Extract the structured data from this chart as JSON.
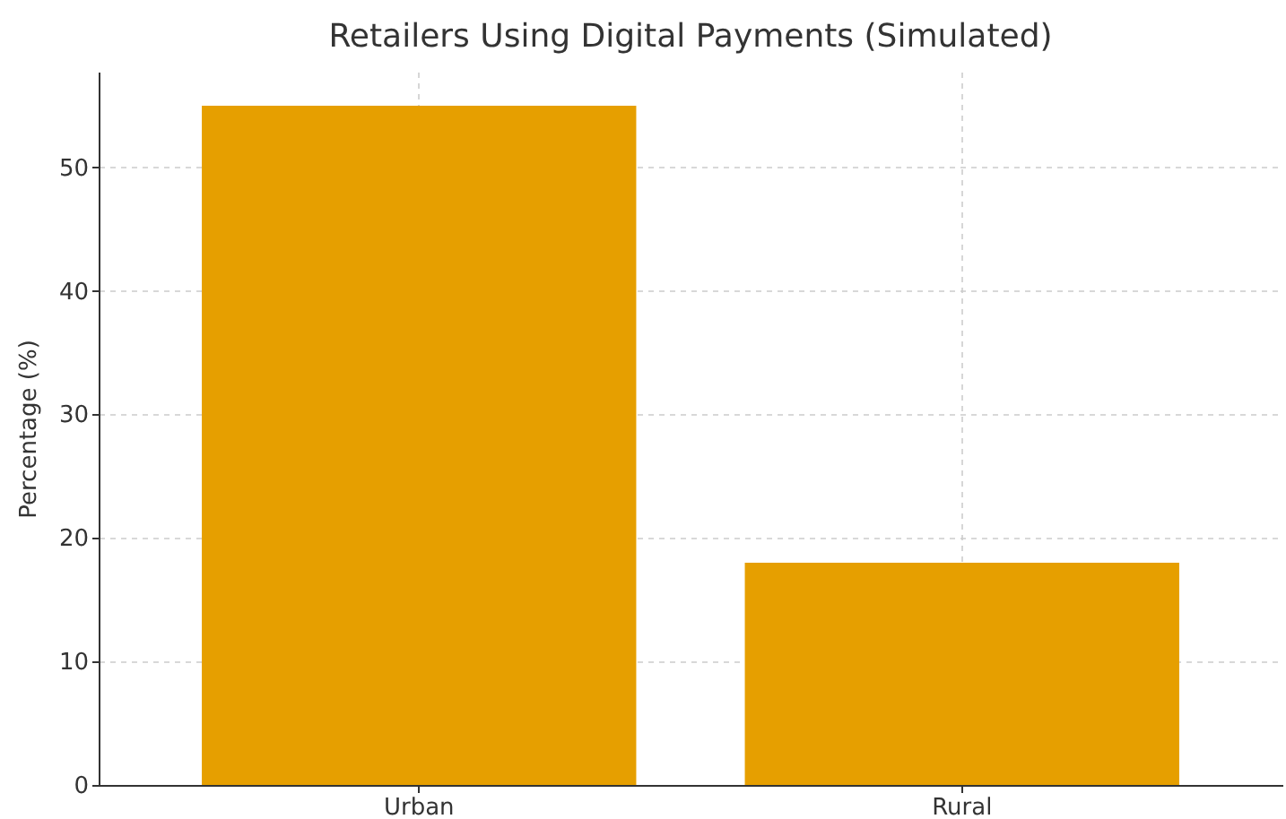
{
  "chart_data": {
    "type": "bar",
    "title": "Retailers Using Digital Payments (Simulated)",
    "ylabel": "Percentage (%)",
    "categories": [
      "Urban",
      "Rural"
    ],
    "values": [
      55,
      18
    ],
    "color": "#e69f00",
    "ylim": [
      0,
      57.75
    ],
    "yticks": [
      0,
      10,
      20,
      30,
      40,
      50
    ],
    "grid": true
  }
}
